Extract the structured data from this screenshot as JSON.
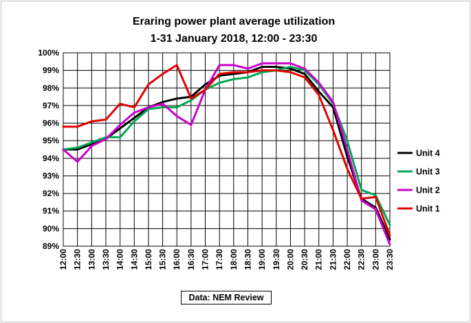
{
  "chart_data": {
    "type": "line",
    "title": [
      "Eraring power plant average utilization",
      "1-31 January  2018,  12:00 - 23:30"
    ],
    "xlabel": "",
    "ylabel": "",
    "x": [
      "12:00",
      "12:30",
      "13:00",
      "13:30",
      "14:00",
      "14:30",
      "15:00",
      "15:30",
      "16:00",
      "16:30",
      "17:00",
      "17:30",
      "18:00",
      "18:30",
      "19:00",
      "19:30",
      "20:00",
      "20:30",
      "21:00",
      "21:30",
      "22:00",
      "22:30",
      "23:00",
      "23:30"
    ],
    "ylim": [
      89,
      100
    ],
    "yticks": [
      "89%",
      "90%",
      "91%",
      "92%",
      "93%",
      "94%",
      "95%",
      "96%",
      "97%",
      "98%",
      "99%",
      "100%"
    ],
    "grid": true,
    "legend_position": "right",
    "series": [
      {
        "name": "Unit 4",
        "color": "#000000",
        "values": [
          94.5,
          94.5,
          94.8,
          95.1,
          95.7,
          96.3,
          96.9,
          97.2,
          97.4,
          97.5,
          98.2,
          98.7,
          98.8,
          98.9,
          99.2,
          99.2,
          99.1,
          98.8,
          97.8,
          96.9,
          94.1,
          91.7,
          91.2,
          89.4
        ]
      },
      {
        "name": "Unit 3",
        "color": "#00a650",
        "values": [
          94.5,
          94.6,
          94.9,
          95.2,
          95.2,
          96.1,
          96.8,
          96.9,
          96.9,
          97.3,
          97.9,
          98.3,
          98.5,
          98.6,
          98.9,
          99.0,
          99.2,
          99.0,
          98.2,
          97.1,
          95.0,
          92.2,
          91.9,
          90.2
        ]
      },
      {
        "name": "Unit 2",
        "color": "#cc00cc",
        "values": [
          94.5,
          93.8,
          94.7,
          95.1,
          95.9,
          96.6,
          96.9,
          97.1,
          96.4,
          95.9,
          97.9,
          99.3,
          99.3,
          99.1,
          99.4,
          99.4,
          99.4,
          99.1,
          98.3,
          97.2,
          94.5,
          91.6,
          91.1,
          89.1
        ]
      },
      {
        "name": "Unit 1",
        "color": "#e00000",
        "values": [
          95.8,
          95.8,
          96.1,
          96.2,
          97.1,
          96.9,
          98.2,
          98.8,
          99.3,
          97.4,
          97.9,
          98.8,
          98.9,
          98.9,
          99.0,
          99.0,
          98.9,
          98.6,
          97.6,
          95.6,
          93.4,
          91.7,
          91.8,
          89.6
        ]
      }
    ],
    "source": "Data: NEM Review"
  }
}
